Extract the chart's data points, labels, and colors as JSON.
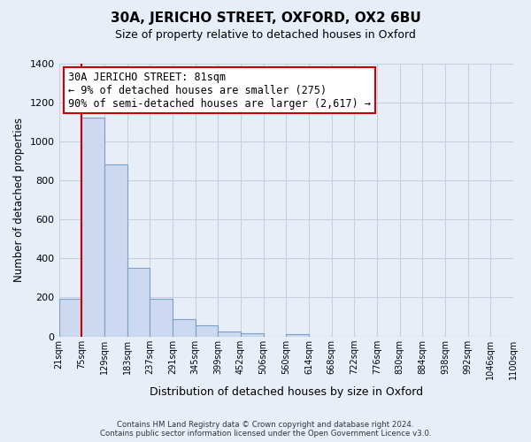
{
  "title": "30A, JERICHO STREET, OXFORD, OX2 6BU",
  "subtitle": "Size of property relative to detached houses in Oxford",
  "xlabel": "Distribution of detached houses by size in Oxford",
  "ylabel": "Number of detached properties",
  "bar_values": [
    195,
    1120,
    880,
    350,
    195,
    90,
    55,
    25,
    15,
    0,
    10,
    0,
    0,
    0,
    0,
    0,
    0,
    0,
    0,
    0
  ],
  "bar_labels": [
    "21sqm",
    "75sqm",
    "129sqm",
    "183sqm",
    "237sqm",
    "291sqm",
    "345sqm",
    "399sqm",
    "452sqm",
    "506sqm",
    "560sqm",
    "614sqm",
    "668sqm",
    "722sqm",
    "776sqm",
    "830sqm",
    "884sqm",
    "938sqm",
    "992sqm",
    "1046sqm",
    "1100sqm"
  ],
  "bar_color": "#ccd9f0",
  "bar_edge_color": "#7aa0c8",
  "vline_x": 1.0,
  "vline_color": "#cc0000",
  "ylim": [
    0,
    1400
  ],
  "yticks": [
    0,
    200,
    400,
    600,
    800,
    1000,
    1200,
    1400
  ],
  "annotation_title": "30A JERICHO STREET: 81sqm",
  "annotation_line1": "← 9% of detached houses are smaller (275)",
  "annotation_line2": "90% of semi-detached houses are larger (2,617) →",
  "annotation_box_color": "#ffffff",
  "annotation_box_edge": "#cc0000",
  "footer_line1": "Contains HM Land Registry data © Crown copyright and database right 2024.",
  "footer_line2": "Contains public sector information licensed under the Open Government Licence v3.0.",
  "background_color": "#e8eef8",
  "plot_bg_color": "#e8eef8",
  "grid_color": "#c8d0e0"
}
